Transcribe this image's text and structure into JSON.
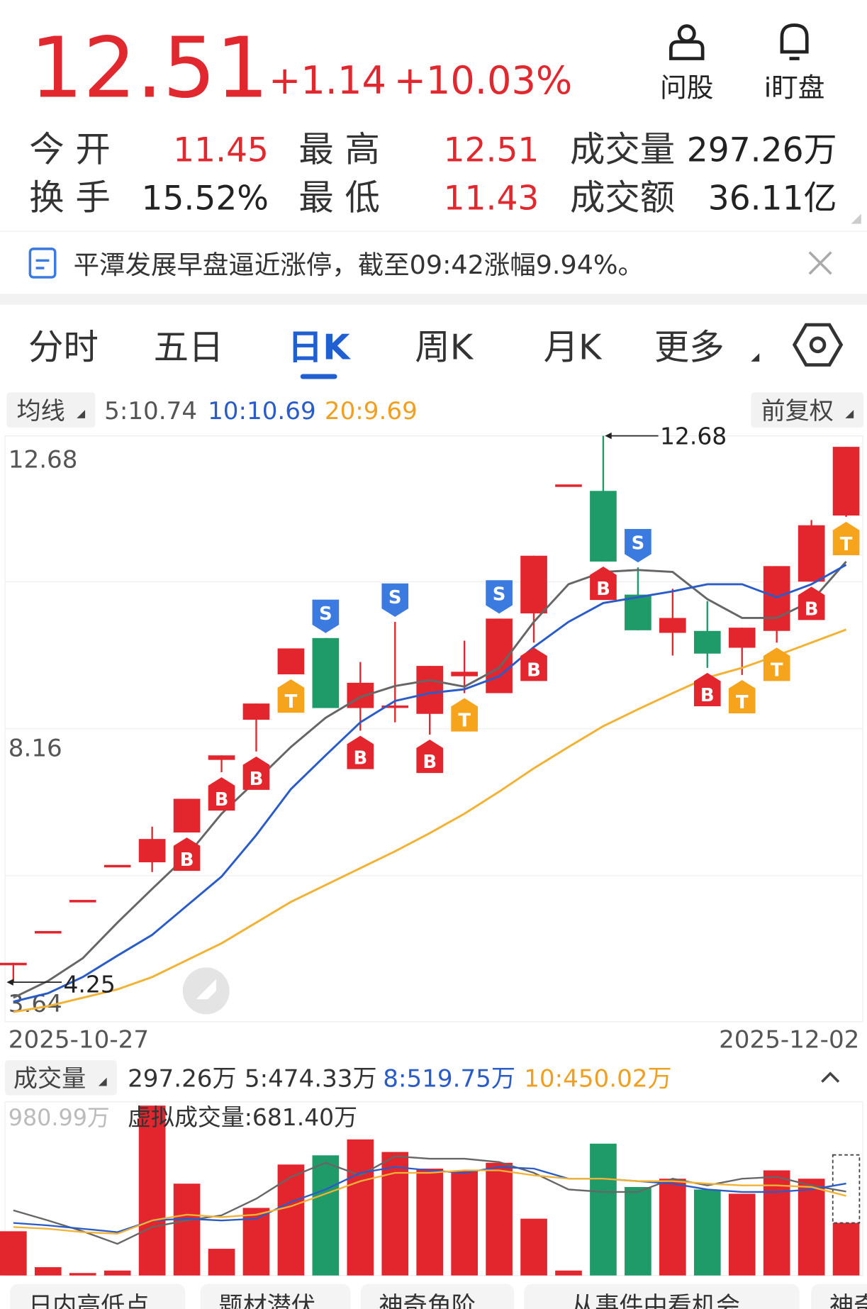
{
  "header": {
    "price": "12.51",
    "change": "+1.14",
    "change_pct": "+10.03%",
    "icons": [
      "问股",
      "i盯盘"
    ]
  },
  "stats": [
    [
      [
        "今 开",
        "11.45"
      ],
      [
        "最 高",
        "12.51"
      ],
      [
        "成交量",
        "297.26万"
      ]
    ],
    [
      [
        "换 手",
        "15.52%"
      ],
      [
        "最 低",
        "11.43"
      ],
      [
        "成交额",
        "36.11亿"
      ]
    ]
  ],
  "news": "平潭发展早盘逼近涨停，截至09:42涨幅9.94%。",
  "tabs": {
    "items": [
      "分时",
      "五日",
      "日K",
      "周K",
      "月K",
      "更多"
    ],
    "active": 2
  },
  "ma_bar": {
    "label": "均线",
    "items": [
      "5:10.74",
      "10:10.69",
      "20:9.69"
    ],
    "adjust": "前复权"
  },
  "vol_bar": {
    "label": "成交量",
    "items": [
      "297.26万",
      "5:474.33万",
      "8:519.75万",
      "10:450.02万"
    ]
  },
  "buttons": [
    "日内高低点",
    "题材潜伏",
    "神奇角阶",
    "从事件中看机会",
    "神奇"
  ],
  "chart_data": [
    {
      "type": "candlestick",
      "up_color": "#e3262e",
      "down_color": "#1e9b68",
      "ylim": [
        3.64,
        12.68
      ],
      "yticks": [
        12.68,
        8.16,
        3.64
      ],
      "x_labels": [
        "2025-10-27",
        "2025-12-02"
      ],
      "high_label": "12.68",
      "low_label": "4.25",
      "signal_colors": {
        "B": "#e3262e",
        "S": "#3b7be0",
        "T": "#f5a41c"
      },
      "candles": [
        {
          "open": 4.55,
          "high": 4.55,
          "low": 4.25,
          "close": 4.55,
          "signal": null
        },
        {
          "open": 5.04,
          "high": 5.04,
          "low": 5.04,
          "close": 5.04,
          "signal": null
        },
        {
          "open": 5.52,
          "high": 5.52,
          "low": 5.52,
          "close": 5.52,
          "signal": null
        },
        {
          "open": 6.06,
          "high": 6.06,
          "low": 6.06,
          "close": 6.06,
          "signal": null
        },
        {
          "open": 6.1,
          "high": 6.65,
          "low": 5.95,
          "close": 6.46,
          "signal": null
        },
        {
          "open": 6.56,
          "high": 7.08,
          "low": 6.56,
          "close": 7.08,
          "signal": "B"
        },
        {
          "open": 7.68,
          "high": 7.75,
          "low": 7.49,
          "close": 7.75,
          "signal": "B"
        },
        {
          "open": 8.3,
          "high": 8.55,
          "low": 7.81,
          "close": 8.55,
          "signal": "B"
        },
        {
          "open": 9.0,
          "high": 9.4,
          "low": 9.0,
          "close": 9.4,
          "signal": "T"
        },
        {
          "open": 9.56,
          "high": 9.56,
          "low": 8.48,
          "close": 8.48,
          "signal": "S"
        },
        {
          "open": 8.48,
          "high": 9.19,
          "low": 8.13,
          "close": 8.87,
          "signal": "B"
        },
        {
          "open": 8.52,
          "high": 9.81,
          "low": 8.26,
          "close": 8.52,
          "signal": "S"
        },
        {
          "open": 8.39,
          "high": 9.13,
          "low": 8.07,
          "close": 9.13,
          "signal": "B"
        },
        {
          "open": 8.97,
          "high": 9.52,
          "low": 8.71,
          "close": 9.04,
          "signal": "T"
        },
        {
          "open": 8.71,
          "high": 9.86,
          "low": 8.71,
          "close": 9.86,
          "signal": "S"
        },
        {
          "open": 9.94,
          "high": 10.83,
          "low": 9.49,
          "close": 10.83,
          "signal": "B"
        },
        {
          "open": 11.93,
          "high": 11.93,
          "low": 11.93,
          "close": 11.93,
          "signal": null
        },
        {
          "open": 11.83,
          "high": 12.68,
          "low": 10.74,
          "close": 10.74,
          "signal": "B"
        },
        {
          "open": 10.23,
          "high": 10.65,
          "low": 9.68,
          "close": 9.68,
          "signal": "S"
        },
        {
          "open": 9.64,
          "high": 10.32,
          "low": 9.29,
          "close": 9.87,
          "signal": null
        },
        {
          "open": 9.67,
          "high": 10.13,
          "low": 9.1,
          "close": 9.32,
          "signal": "B"
        },
        {
          "open": 9.41,
          "high": 9.72,
          "low": 8.99,
          "close": 9.72,
          "signal": "T"
        },
        {
          "open": 9.67,
          "high": 10.67,
          "low": 9.49,
          "close": 10.67,
          "signal": "T"
        },
        {
          "open": 10.43,
          "high": 11.38,
          "low": 10.43,
          "close": 11.3,
          "signal": "B"
        },
        {
          "open": 11.45,
          "high": 12.51,
          "low": 11.43,
          "close": 12.51,
          "signal": "T"
        }
      ],
      "series": [
        {
          "name": "MA5",
          "color": "#666666",
          "values": [
            4.01,
            4.27,
            4.62,
            5.17,
            5.69,
            6.2,
            6.85,
            7.36,
            7.88,
            8.33,
            8.65,
            8.82,
            8.91,
            8.81,
            9.1,
            9.81,
            10.39,
            10.58,
            10.61,
            10.58,
            10.16,
            9.87,
            9.87,
            10.13,
            10.74
          ]
        },
        {
          "name": "MA10",
          "color": "#2a5cc8",
          "values": [
            3.95,
            4.08,
            4.33,
            4.66,
            4.98,
            5.43,
            5.88,
            6.52,
            7.23,
            7.75,
            8.26,
            8.59,
            8.71,
            8.77,
            8.97,
            9.42,
            9.81,
            10.1,
            10.19,
            10.28,
            10.39,
            10.39,
            10.19,
            10.39,
            10.69
          ]
        },
        {
          "name": "MA20",
          "color": "#f2b233",
          "values": [
            3.79,
            3.88,
            4.01,
            4.14,
            4.33,
            4.59,
            4.85,
            5.17,
            5.49,
            5.75,
            6.01,
            6.27,
            6.55,
            6.85,
            7.19,
            7.55,
            7.88,
            8.2,
            8.46,
            8.71,
            8.95,
            9.1,
            9.29,
            9.49,
            9.69
          ]
        }
      ]
    },
    {
      "type": "bar",
      "ylim": [
        0,
        980.99
      ],
      "yticks": [
        {
          "value": 980.99,
          "label": "980.99万"
        }
      ],
      "virtual_label": "虚拟成交量:681.40万",
      "virtual_value": 681.4,
      "values": [
        250,
        47,
        14,
        28,
        960,
        519,
        151,
        382,
        627,
        679,
        769,
        698,
        604,
        590,
        637,
        321,
        28,
        745,
        500,
        547,
        486,
        462,
        594,
        547,
        297.26
      ],
      "series": [
        {
          "name": "5",
          "color": "#666666",
          "values": [
            368,
            311,
            250,
            179,
            274,
            311,
            340,
            434,
            557,
            637,
            566,
            674,
            660,
            660,
            641,
            580,
            486,
            472,
            472,
            547,
            509,
            547,
            557,
            509,
            474.33
          ]
        },
        {
          "name": "8",
          "color": "#2a5cc8",
          "values": [
            297,
            283,
            264,
            245,
            311,
            321,
            311,
            321,
            415,
            486,
            580,
            613,
            594,
            580,
            613,
            604,
            547,
            547,
            533,
            519,
            486,
            472,
            472,
            486,
            519.75
          ]
        },
        {
          "name": "10",
          "color": "#f2b233",
          "values": [
            274,
            264,
            245,
            236,
            311,
            344,
            330,
            344,
            391,
            462,
            533,
            580,
            580,
            594,
            594,
            566,
            547,
            547,
            533,
            533,
            519,
            509,
            509,
            500,
            450.02
          ]
        }
      ]
    }
  ]
}
